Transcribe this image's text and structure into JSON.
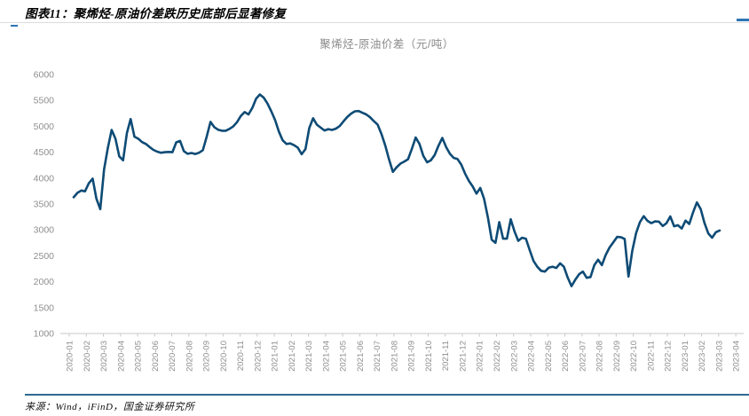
{
  "header": {
    "title": "图表11：聚烯烃-原油价差跌历史底部后显著修复"
  },
  "footer": {
    "source": "来源：Wind，iFinD，国金证券研究所"
  },
  "colors": {
    "line": "#0e4b75",
    "axis": "#c9c9c9",
    "axis_label": "#8f8f8f",
    "chart_title": "#8c8c8c",
    "header_rule": "#dcdcdc",
    "source_rule": "#2f6a90",
    "blue_dash": "#2e75b6"
  },
  "chart_data": {
    "type": "line",
    "title": "聚烯烃-原油价差（元/吨）",
    "xlabel": "",
    "ylabel": "",
    "ylim": [
      1000,
      6000
    ],
    "y_ticks": [
      1000,
      1500,
      2000,
      2500,
      3000,
      3500,
      4000,
      4500,
      5000,
      5500,
      6000
    ],
    "grid": false,
    "legend_position": "none",
    "x_start": "2020-01",
    "x_end": "2023-04",
    "freq": "weekly",
    "x_labels": [
      "2020-01",
      "2020-02",
      "2020-03",
      "2020-04",
      "2020-05",
      "2020-06",
      "2020-07",
      "2020-08",
      "2020-09",
      "2020-10",
      "2020-11",
      "2020-12",
      "2021-01",
      "2021-02",
      "2021-03",
      "2021-04",
      "2021-05",
      "2021-06",
      "2021-07",
      "2021-08",
      "2021-09",
      "2021-10",
      "2021-11",
      "2021-12",
      "2022-01",
      "2022-02",
      "2022-03",
      "2022-04",
      "2022-05",
      "2022-06",
      "2022-07",
      "2022-08",
      "2022-09",
      "2022-10",
      "2022-11",
      "2022-12",
      "2023-01",
      "2023-02",
      "2023-03",
      "2023-04"
    ],
    "series": [
      {
        "name": "聚烯烃-原油价差",
        "values": [
          3630,
          3715,
          3760,
          3745,
          3900,
          3990,
          3600,
          3400,
          4170,
          4580,
          4930,
          4760,
          4420,
          4345,
          4870,
          5140,
          4800,
          4760,
          4695,
          4660,
          4600,
          4545,
          4510,
          4490,
          4500,
          4505,
          4500,
          4690,
          4720,
          4520,
          4470,
          4485,
          4465,
          4490,
          4540,
          4800,
          5085,
          4985,
          4935,
          4915,
          4915,
          4950,
          5000,
          5080,
          5200,
          5275,
          5230,
          5355,
          5535,
          5615,
          5555,
          5440,
          5290,
          5120,
          4900,
          4730,
          4660,
          4670,
          4635,
          4585,
          4460,
          4560,
          4965,
          5155,
          5030,
          4975,
          4920,
          4945,
          4930,
          4955,
          5005,
          5095,
          5180,
          5245,
          5290,
          5295,
          5260,
          5230,
          5175,
          5100,
          5030,
          4850,
          4625,
          4360,
          4120,
          4210,
          4280,
          4320,
          4365,
          4565,
          4785,
          4660,
          4430,
          4305,
          4345,
          4445,
          4625,
          4775,
          4600,
          4470,
          4390,
          4370,
          4260,
          4085,
          3945,
          3840,
          3700,
          3810,
          3600,
          3240,
          2810,
          2750,
          3150,
          2830,
          2830,
          3205,
          2970,
          2790,
          2850,
          2830,
          2610,
          2400,
          2290,
          2210,
          2195,
          2270,
          2290,
          2265,
          2355,
          2290,
          2080,
          1915,
          2040,
          2145,
          2195,
          2075,
          2090,
          2320,
          2425,
          2320,
          2515,
          2660,
          2760,
          2865,
          2860,
          2825,
          2100,
          2600,
          2940,
          3150,
          3265,
          3175,
          3130,
          3165,
          3160,
          3075,
          3130,
          3260,
          3070,
          3090,
          3025,
          3180,
          3115,
          3340,
          3530,
          3400,
          3130,
          2930,
          2850,
          2955,
          2990
        ]
      }
    ]
  }
}
